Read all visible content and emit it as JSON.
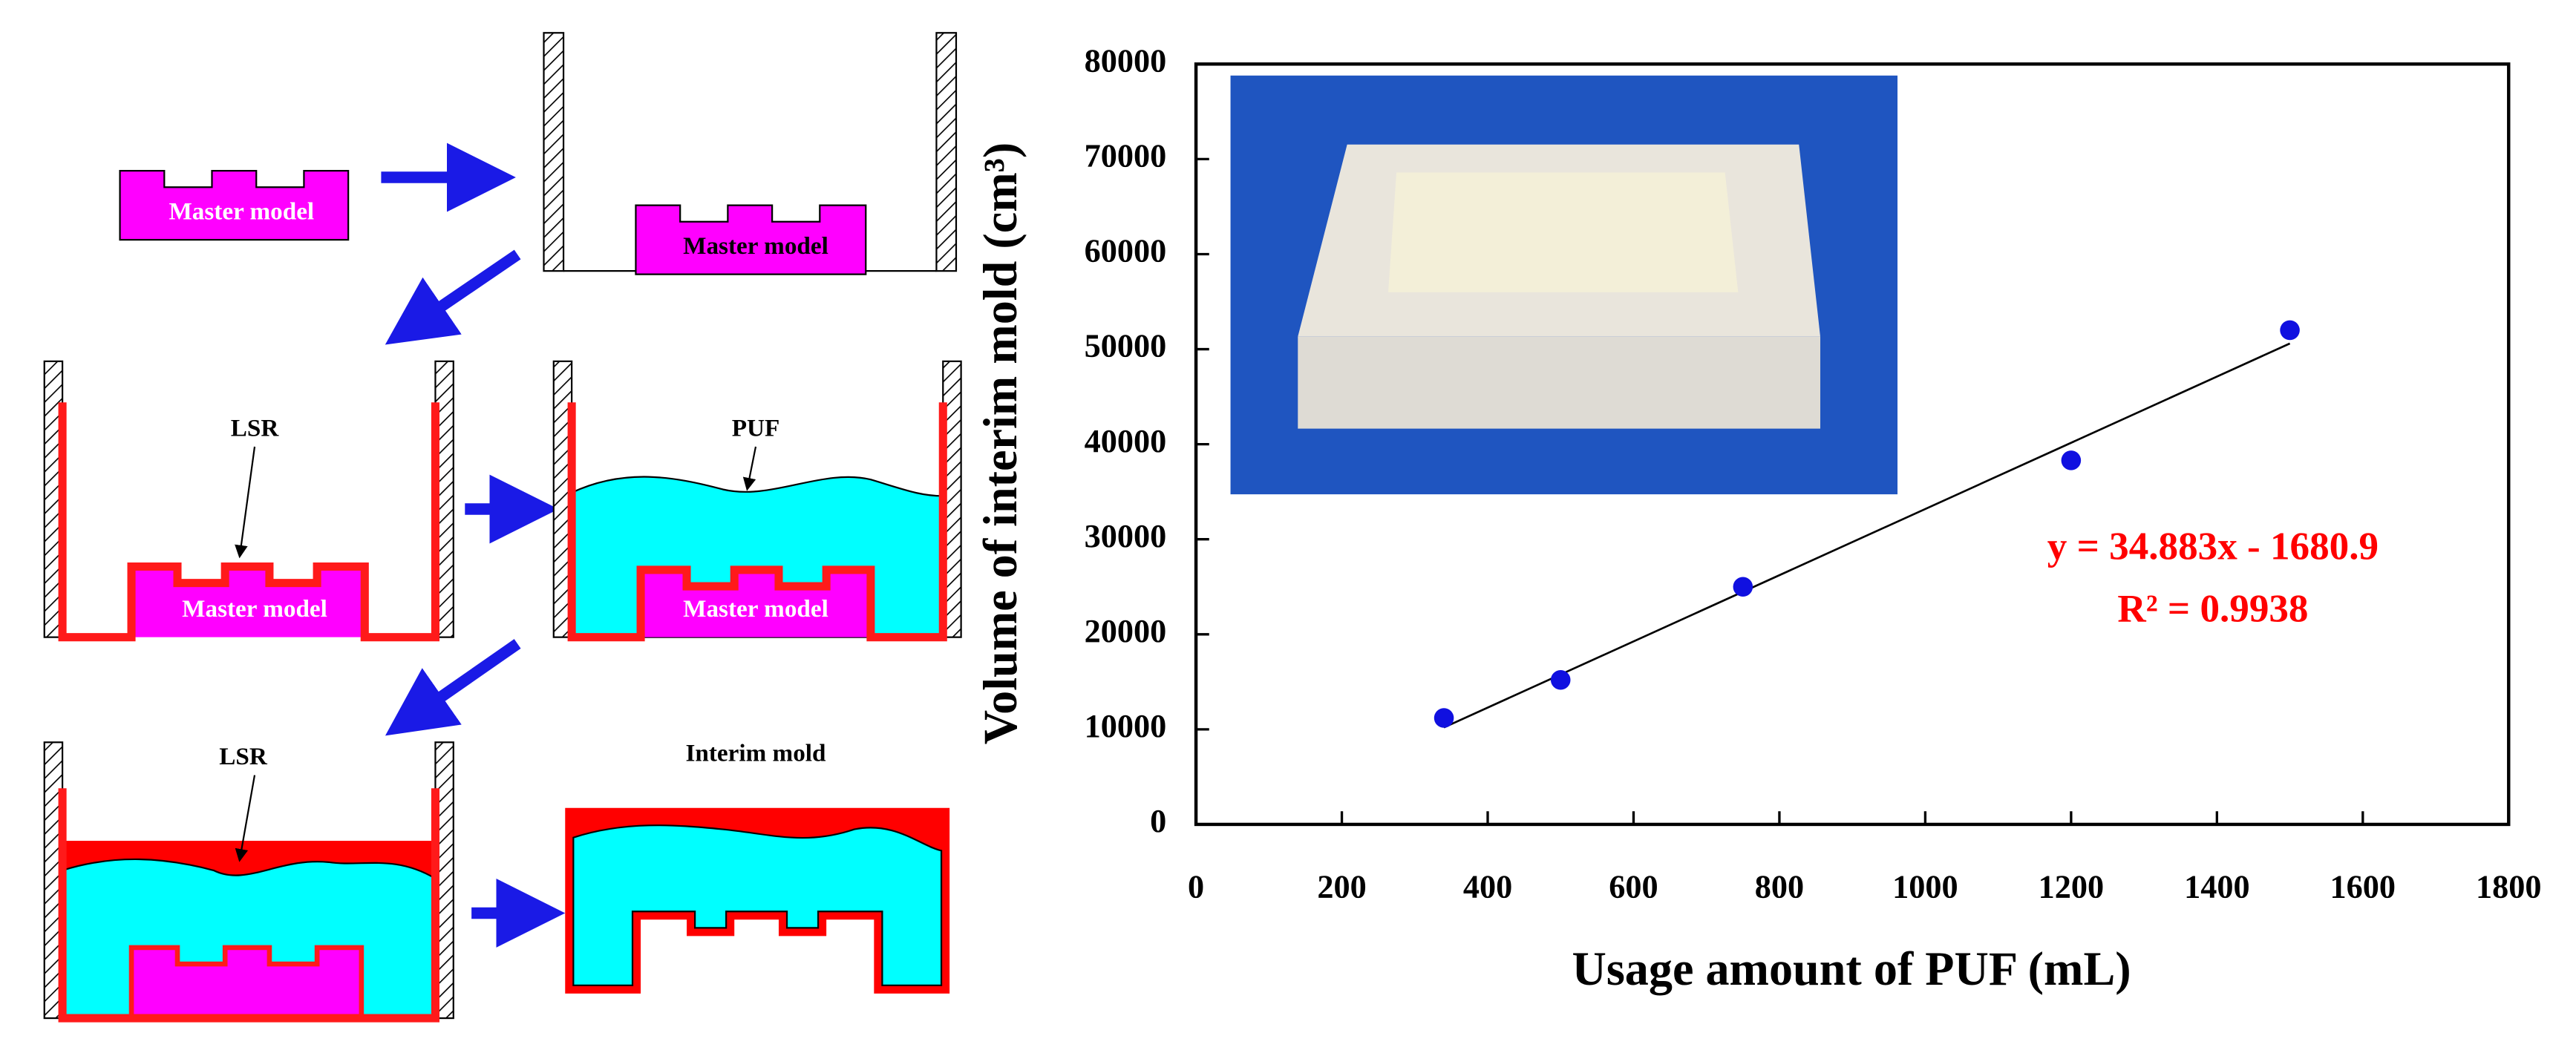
{
  "chart_data": {
    "type": "scatter",
    "x_label": "Usage amount of PUF (mL)",
    "y_label": "Volume of interim mold (cm³)",
    "x": [
      340,
      500,
      750,
      1200,
      1500
    ],
    "values": [
      11200,
      15200,
      25000,
      38300,
      52000
    ],
    "color": "#1010e0",
    "trendline": {
      "x": [
        340,
        1500
      ],
      "values": [
        10200,
        50600
      ],
      "color": "#000000"
    },
    "annotations": [
      "y = 34.883x - 1680.9",
      "R² = 0.9938"
    ],
    "annotation_color": "#ff0000",
    "xlim": [
      0,
      1800
    ],
    "xticks": [
      0,
      200,
      400,
      600,
      800,
      1000,
      1200,
      1400,
      1600,
      1800
    ],
    "ylim": [
      0,
      80000
    ],
    "yticks": [
      0,
      10000,
      20000,
      30000,
      40000,
      50000,
      60000,
      70000,
      80000
    ],
    "grid": false
  },
  "diagram": {
    "labels": [
      "Master model",
      "Master model",
      "LSR",
      "Master model",
      "PUF",
      "Master model",
      "LSR",
      "Interim mold"
    ]
  }
}
